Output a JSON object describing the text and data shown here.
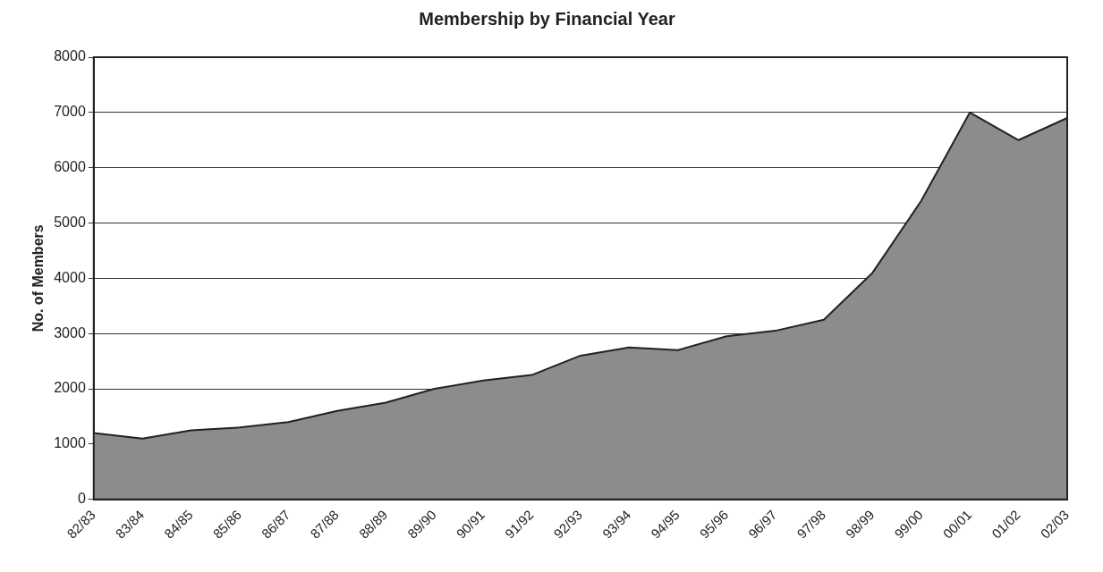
{
  "chart_data": {
    "type": "area",
    "title": "Membership by Financial Year",
    "ylabel": "No. of Members",
    "categories": [
      "82/83",
      "83/84",
      "84/85",
      "85/86",
      "86/87",
      "87/88",
      "88/89",
      "89/90",
      "90/91",
      "91/92",
      "92/93",
      "93/94",
      "94/95",
      "95/96",
      "96/97",
      "97/98",
      "98/99",
      "99/00",
      "00/01",
      "01/02",
      "02/03"
    ],
    "values": [
      1200,
      1100,
      1250,
      1300,
      1400,
      1600,
      1750,
      2000,
      2150,
      2250,
      2600,
      2750,
      2700,
      2950,
      3050,
      3250,
      4100,
      5400,
      7000,
      6500,
      6900
    ],
    "color": "#8c8c8c",
    "ylim": [
      0,
      8000
    ],
    "yticks": [
      0,
      1000,
      2000,
      3000,
      4000,
      5000,
      6000,
      7000,
      8000
    ],
    "grid": "y"
  }
}
